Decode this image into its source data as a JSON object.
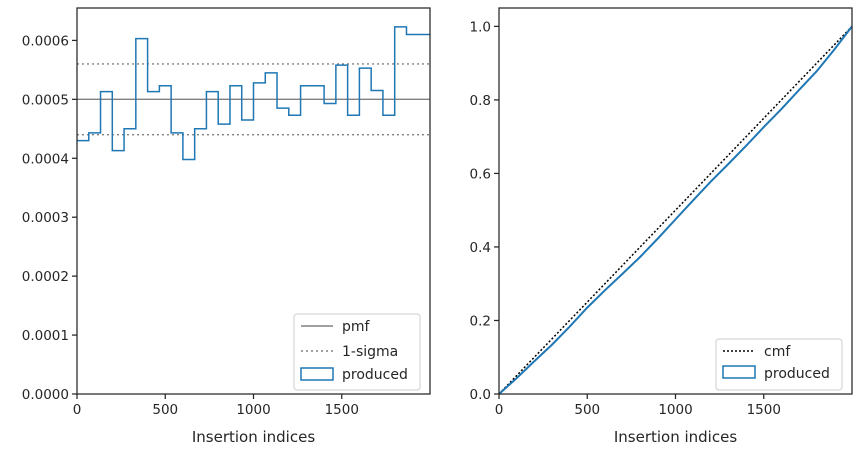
{
  "chart_data": [
    {
      "type": "histogram-step",
      "xlabel": "Insertion indices",
      "ylabel": "",
      "xlim": [
        0,
        2000
      ],
      "ylim": [
        0,
        0.000655
      ],
      "xticks": [
        0,
        500,
        1000,
        1500
      ],
      "yticks": [
        0.0,
        0.0001,
        0.0002,
        0.0003,
        0.0004,
        0.0005,
        0.0006
      ],
      "ytick_labels": [
        "0.0000",
        "0.0001",
        "0.0002",
        "0.0003",
        "0.0004",
        "0.0005",
        "0.0006"
      ],
      "reference_lines": [
        {
          "name": "pmf",
          "y": 0.0005,
          "style": "solid",
          "color": "#808080"
        },
        {
          "name": "1-sigma",
          "y": [
            0.00044,
            0.00056
          ],
          "style": "dotted",
          "color": "#808080"
        }
      ],
      "series": [
        {
          "name": "produced",
          "color": "#1f77b4",
          "bin_edges": [
            0,
            66.7,
            133.3,
            200,
            266.7,
            333.3,
            400,
            466.7,
            533.3,
            600,
            666.7,
            733.3,
            800,
            866.7,
            933.3,
            1000,
            1066.7,
            1133.3,
            1200,
            1266.7,
            1333.3,
            1400,
            1466.7,
            1533.3,
            1600,
            1666.7,
            1733.3,
            1800,
            1866.7,
            1933.3,
            2000
          ],
          "values": [
            0.00043,
            0.000443,
            0.000513,
            0.000413,
            0.00045,
            0.000603,
            0.000513,
            0.000523,
            0.000443,
            0.000398,
            0.00045,
            0.000513,
            0.000458,
            0.000523,
            0.000465,
            0.000528,
            0.000545,
            0.000485,
            0.000473,
            0.000523,
            0.000523,
            0.000493,
            0.000558,
            0.000473,
            0.000553,
            0.000515,
            0.000473,
            0.000623,
            0.00061,
            0.00061
          ]
        }
      ],
      "legend": {
        "placement": "lower right",
        "entries": [
          "pmf",
          "1-sigma",
          "produced"
        ]
      },
      "grid": false
    },
    {
      "type": "line",
      "xlabel": "Insertion indices",
      "ylabel": "",
      "xlim": [
        0,
        2000
      ],
      "ylim": [
        0,
        1.05
      ],
      "xticks": [
        0,
        500,
        1000,
        1500
      ],
      "yticks": [
        0.0,
        0.2,
        0.4,
        0.6,
        0.8,
        1.0
      ],
      "ytick_labels": [
        "0.0",
        "0.2",
        "0.4",
        "0.6",
        "0.8",
        "1.0"
      ],
      "series": [
        {
          "name": "cmf",
          "style": "dotted",
          "color": "#000000",
          "x": [
            0,
            2000
          ],
          "y": [
            0,
            1.0
          ]
        },
        {
          "name": "produced",
          "style": "step",
          "color": "#1f77b4",
          "x": [
            0,
            100,
            200,
            300,
            400,
            500,
            600,
            700,
            800,
            900,
            1000,
            1100,
            1200,
            1300,
            1400,
            1500,
            1600,
            1700,
            1800,
            1900,
            2000
          ],
          "y": [
            0,
            0.043,
            0.089,
            0.134,
            0.183,
            0.235,
            0.282,
            0.327,
            0.373,
            0.423,
            0.475,
            0.527,
            0.578,
            0.626,
            0.675,
            0.726,
            0.775,
            0.827,
            0.878,
            0.937,
            1.0
          ]
        }
      ],
      "legend": {
        "placement": "lower right",
        "entries": [
          "cmf",
          "produced"
        ]
      },
      "grid": false
    }
  ]
}
